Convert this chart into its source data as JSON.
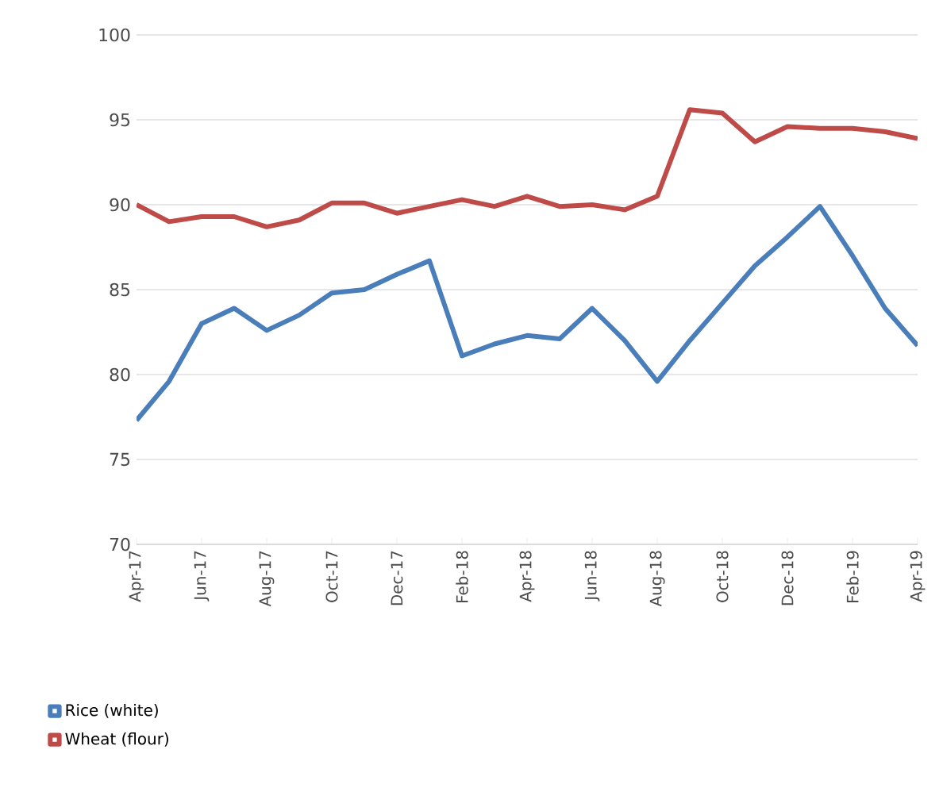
{
  "chart_data": {
    "type": "line",
    "categories": [
      "Apr-17",
      null,
      "Jun-17",
      null,
      "Aug-17",
      null,
      "Oct-17",
      null,
      "Dec-17",
      null,
      "Feb-18",
      null,
      "Apr-18",
      null,
      "Jun-18",
      null,
      "Aug-18",
      null,
      "Oct-18",
      null,
      "Dec-18",
      null,
      "Feb-19",
      null,
      "Apr-19"
    ],
    "series": [
      {
        "name": "Rice (white)",
        "color": "#4a7ebb",
        "values": [
          77.3,
          79.6,
          83.0,
          83.9,
          82.6,
          83.5,
          84.8,
          85.0,
          85.9,
          86.7,
          81.1,
          81.8,
          82.3,
          82.1,
          83.9,
          82.0,
          79.6,
          82.0,
          84.2,
          86.4,
          88.1,
          89.9,
          87.0,
          83.9,
          81.7
        ]
      },
      {
        "name": "Wheat (flour)",
        "color": "#be4b48",
        "values": [
          90.0,
          89.0,
          89.3,
          89.3,
          88.7,
          89.1,
          90.1,
          90.1,
          89.5,
          89.9,
          90.3,
          89.9,
          90.5,
          89.9,
          90.0,
          89.7,
          90.5,
          95.6,
          95.4,
          93.7,
          94.6,
          94.5,
          94.5,
          94.3,
          93.9
        ]
      }
    ],
    "ylim": [
      70,
      100
    ],
    "yticks": [
      70,
      75,
      80,
      85,
      90,
      95,
      100
    ],
    "grid": "y",
    "legend": "bottom left",
    "marker": "none",
    "line_style": "solid"
  }
}
